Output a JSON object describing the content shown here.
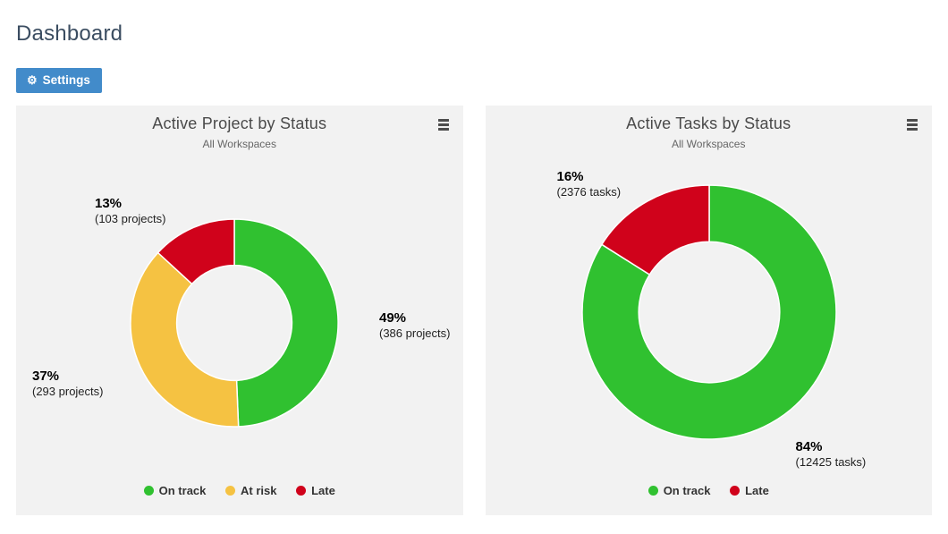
{
  "page": {
    "title": "Dashboard"
  },
  "toolbar": {
    "settings_label": "Settings"
  },
  "icons": {
    "gear": "⚙",
    "menu": "hamburger-menu"
  },
  "colors": {
    "on_track": "#30c130",
    "at_risk": "#f5c242",
    "late": "#d0021b",
    "button_blue": "#428bca",
    "card_background": "#f2f2f2"
  },
  "chart_data": [
    {
      "type": "pie",
      "title": "Active Project by Status",
      "subtitle": "All Workspaces",
      "unit": "projects",
      "donut": true,
      "legend_position": "bottom",
      "series": [
        {
          "name": "On track",
          "value": 386,
          "percent": "49%",
          "count_label": "(386 projects)",
          "color": "#30c130"
        },
        {
          "name": "At risk",
          "value": 293,
          "percent": "37%",
          "count_label": "(293 projects)",
          "color": "#f5c242"
        },
        {
          "name": "Late",
          "value": 103,
          "percent": "13%",
          "count_label": "(103 projects)",
          "color": "#d0021b"
        }
      ]
    },
    {
      "type": "pie",
      "title": "Active Tasks by Status",
      "subtitle": "All Workspaces",
      "unit": "tasks",
      "donut": true,
      "legend_position": "bottom",
      "series": [
        {
          "name": "On track",
          "value": 12425,
          "percent": "84%",
          "count_label": "(12425 tasks)",
          "color": "#30c130"
        },
        {
          "name": "Late",
          "value": 2376,
          "percent": "16%",
          "count_label": "(2376 tasks)",
          "color": "#d0021b"
        }
      ]
    }
  ]
}
